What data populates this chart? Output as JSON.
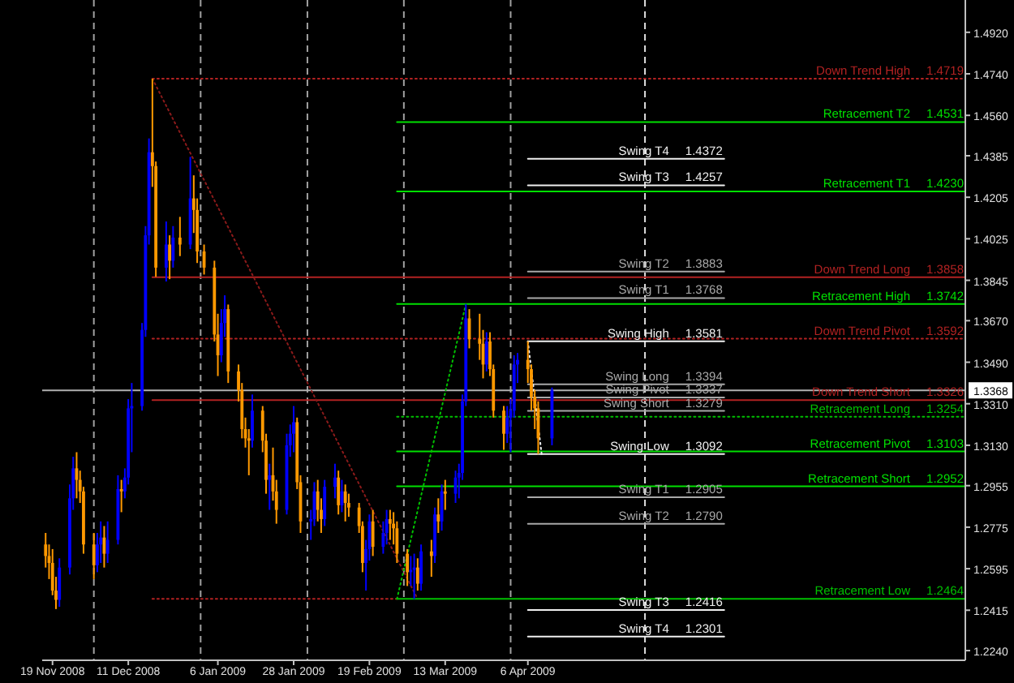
{
  "chart_data": {
    "type": "candlestick",
    "x": [
      "2008-11-17",
      "2008-11-18",
      "2008-11-19",
      "2008-11-20",
      "2008-11-21",
      "2008-11-24",
      "2008-11-25",
      "2008-11-26",
      "2008-11-27",
      "2008-11-28",
      "2008-12-01",
      "2008-12-02",
      "2008-12-03",
      "2008-12-04",
      "2008-12-05",
      "2008-12-08",
      "2008-12-09",
      "2008-12-10",
      "2008-12-11",
      "2008-12-12",
      "2008-12-15",
      "2008-12-16",
      "2008-12-17",
      "2008-12-18",
      "2008-12-19",
      "2008-12-22",
      "2008-12-23",
      "2008-12-24",
      "2008-12-26",
      "2008-12-29",
      "2008-12-30",
      "2008-12-31",
      "2009-01-02",
      "2009-01-05",
      "2009-01-06",
      "2009-01-07",
      "2009-01-08",
      "2009-01-09",
      "2009-01-12",
      "2009-01-13",
      "2009-01-14",
      "2009-01-15",
      "2009-01-16",
      "2009-01-19",
      "2009-01-20",
      "2009-01-21",
      "2009-01-22",
      "2009-01-23",
      "2009-01-26",
      "2009-01-27",
      "2009-01-28",
      "2009-01-29",
      "2009-01-30",
      "2009-02-02",
      "2009-02-03",
      "2009-02-04",
      "2009-02-05",
      "2009-02-06",
      "2009-02-09",
      "2009-02-10",
      "2009-02-11",
      "2009-02-12",
      "2009-02-13",
      "2009-02-16",
      "2009-02-17",
      "2009-02-18",
      "2009-02-19",
      "2009-02-20",
      "2009-02-23",
      "2009-02-24",
      "2009-02-25",
      "2009-02-26",
      "2009-02-27",
      "2009-03-02",
      "2009-03-03",
      "2009-03-04",
      "2009-03-05",
      "2009-03-06",
      "2009-03-09",
      "2009-03-10",
      "2009-03-11",
      "2009-03-12",
      "2009-03-13",
      "2009-03-16",
      "2009-03-17",
      "2009-03-18",
      "2009-03-19",
      "2009-03-20",
      "2009-03-23",
      "2009-03-24",
      "2009-03-25",
      "2009-03-26",
      "2009-03-27",
      "2009-03-30",
      "2009-03-31",
      "2009-04-01",
      "2009-04-02",
      "2009-04-03",
      "2009-04-06",
      "2009-04-07",
      "2009-04-08",
      "2009-04-09",
      "2009-04-13"
    ],
    "ohlc": [
      [
        1.27,
        1.275,
        1.26,
        1.265
      ],
      [
        1.265,
        1.27,
        1.255,
        1.262
      ],
      [
        1.262,
        1.268,
        1.248,
        1.25
      ],
      [
        1.25,
        1.256,
        1.242,
        1.246
      ],
      [
        1.246,
        1.264,
        1.243,
        1.26
      ],
      [
        1.26,
        1.296,
        1.257,
        1.29
      ],
      [
        1.29,
        1.308,
        1.285,
        1.303
      ],
      [
        1.303,
        1.31,
        1.29,
        1.298
      ],
      [
        1.298,
        1.302,
        1.288,
        1.293
      ],
      [
        1.293,
        1.295,
        1.266,
        1.27
      ],
      [
        1.27,
        1.275,
        1.255,
        1.261
      ],
      [
        1.261,
        1.275,
        1.258,
        1.27
      ],
      [
        1.27,
        1.28,
        1.262,
        1.273
      ],
      [
        1.273,
        1.278,
        1.26,
        1.266
      ],
      [
        1.266,
        1.28,
        1.262,
        1.272
      ],
      [
        1.272,
        1.3,
        1.27,
        1.294
      ],
      [
        1.294,
        1.298,
        1.284,
        1.293
      ],
      [
        1.293,
        1.303,
        1.29,
        1.299
      ],
      [
        1.299,
        1.333,
        1.296,
        1.329
      ],
      [
        1.329,
        1.34,
        1.31,
        1.33
      ],
      [
        1.33,
        1.366,
        1.328,
        1.363
      ],
      [
        1.363,
        1.408,
        1.36,
        1.404
      ],
      [
        1.404,
        1.446,
        1.4,
        1.44
      ],
      [
        1.44,
        1.4719,
        1.425,
        1.434
      ],
      [
        1.434,
        1.436,
        1.386,
        1.39
      ],
      [
        1.39,
        1.41,
        1.384,
        1.4
      ],
      [
        1.4,
        1.404,
        1.385,
        1.393
      ],
      [
        1.393,
        1.408,
        1.39,
        1.403
      ],
      [
        1.403,
        1.412,
        1.395,
        1.4
      ],
      [
        1.4,
        1.438,
        1.398,
        1.42
      ],
      [
        1.42,
        1.43,
        1.405,
        1.415
      ],
      [
        1.415,
        1.42,
        1.392,
        1.397
      ],
      [
        1.397,
        1.4,
        1.387,
        1.39
      ],
      [
        1.39,
        1.393,
        1.358,
        1.361
      ],
      [
        1.361,
        1.37,
        1.343,
        1.352
      ],
      [
        1.352,
        1.372,
        1.349,
        1.366
      ],
      [
        1.366,
        1.378,
        1.36,
        1.372
      ],
      [
        1.372,
        1.374,
        1.34,
        1.345
      ],
      [
        1.345,
        1.348,
        1.332,
        1.337
      ],
      [
        1.337,
        1.34,
        1.316,
        1.32
      ],
      [
        1.32,
        1.325,
        1.312,
        1.316
      ],
      [
        1.316,
        1.32,
        1.3,
        1.315
      ],
      [
        1.315,
        1.335,
        1.312,
        1.328
      ],
      [
        1.328,
        1.33,
        1.31,
        1.315
      ],
      [
        1.315,
        1.318,
        1.292,
        1.298
      ],
      [
        1.298,
        1.305,
        1.285,
        1.3
      ],
      [
        1.3,
        1.312,
        1.289,
        1.293
      ],
      [
        1.293,
        1.298,
        1.279,
        1.285
      ],
      [
        1.285,
        1.318,
        1.283,
        1.313
      ],
      [
        1.313,
        1.322,
        1.308,
        1.318
      ],
      [
        1.318,
        1.33,
        1.31,
        1.323
      ],
      [
        1.323,
        1.325,
        1.294,
        1.297
      ],
      [
        1.297,
        1.3,
        1.275,
        1.28
      ],
      [
        1.28,
        1.285,
        1.272,
        1.281
      ],
      [
        1.281,
        1.297,
        1.278,
        1.293
      ],
      [
        1.293,
        1.298,
        1.28,
        1.285
      ],
      [
        1.285,
        1.29,
        1.275,
        1.281
      ],
      [
        1.281,
        1.298,
        1.278,
        1.295
      ],
      [
        1.295,
        1.305,
        1.29,
        1.299
      ],
      [
        1.299,
        1.302,
        1.283,
        1.287
      ],
      [
        1.287,
        1.298,
        1.284,
        1.293
      ],
      [
        1.293,
        1.296,
        1.28,
        1.288
      ],
      [
        1.288,
        1.292,
        1.282,
        1.286
      ],
      [
        1.286,
        1.288,
        1.275,
        1.278
      ],
      [
        1.278,
        1.28,
        1.258,
        1.262
      ],
      [
        1.262,
        1.272,
        1.25,
        1.268
      ],
      [
        1.268,
        1.283,
        1.263,
        1.28
      ],
      [
        1.28,
        1.285,
        1.265,
        1.269
      ],
      [
        1.269,
        1.28,
        1.266,
        1.275
      ],
      [
        1.275,
        1.285,
        1.27,
        1.281
      ],
      [
        1.281,
        1.285,
        1.272,
        1.279
      ],
      [
        1.279,
        1.284,
        1.27,
        1.277
      ],
      [
        1.277,
        1.28,
        1.262,
        1.266
      ],
      [
        1.266,
        1.268,
        1.252,
        1.258
      ],
      [
        1.258,
        1.265,
        1.252,
        1.259
      ],
      [
        1.259,
        1.266,
        1.2464,
        1.26
      ],
      [
        1.26,
        1.264,
        1.25,
        1.253
      ],
      [
        1.253,
        1.27,
        1.25,
        1.267
      ],
      [
        1.267,
        1.272,
        1.256,
        1.265
      ],
      [
        1.265,
        1.286,
        1.262,
        1.283
      ],
      [
        1.283,
        1.29,
        1.275,
        1.28
      ],
      [
        1.28,
        1.296,
        1.276,
        1.293
      ],
      [
        1.293,
        1.298,
        1.285,
        1.292
      ],
      [
        1.292,
        1.302,
        1.288,
        1.299
      ],
      [
        1.299,
        1.305,
        1.29,
        1.301
      ],
      [
        1.301,
        1.335,
        1.298,
        1.332
      ],
      [
        1.332,
        1.3742,
        1.33,
        1.368
      ],
      [
        1.368,
        1.372,
        1.355,
        1.359
      ],
      [
        1.359,
        1.37,
        1.35,
        1.357
      ],
      [
        1.357,
        1.363,
        1.342,
        1.348
      ],
      [
        1.348,
        1.362,
        1.345,
        1.358
      ],
      [
        1.358,
        1.362,
        1.343,
        1.346
      ],
      [
        1.346,
        1.348,
        1.325,
        1.328
      ],
      [
        1.328,
        1.33,
        1.311,
        1.318
      ],
      [
        1.318,
        1.33,
        1.314,
        1.325
      ],
      [
        1.325,
        1.333,
        1.31,
        1.328
      ],
      [
        1.328,
        1.352,
        1.325,
        1.348
      ],
      [
        1.348,
        1.353,
        1.34,
        1.35
      ],
      [
        1.35,
        1.3581,
        1.34,
        1.346
      ],
      [
        1.346,
        1.348,
        1.328,
        1.334
      ],
      [
        1.334,
        1.337,
        1.32,
        1.329
      ],
      [
        1.329,
        1.332,
        1.3092,
        1.316
      ],
      [
        1.316,
        1.338,
        1.313,
        1.3368
      ]
    ],
    "colors": [
      "#ff9900",
      "#ff9900",
      "#ff9900",
      "#ff9900",
      "#0000ff",
      "#0000ff",
      "#0000ff",
      "#ff9900",
      "#ff9900",
      "#ff9900",
      "#ff9900",
      "#0000ff",
      "#0000ff",
      "#ff9900",
      "#0000ff",
      "#0000ff",
      "#ff9900",
      "#0000ff",
      "#0000ff",
      "#0000ff",
      "#0000ff",
      "#0000ff",
      "#0000ff",
      "#ff9900",
      "#ff9900",
      "#0000ff",
      "#ff9900",
      "#0000ff",
      "#ff9900",
      "#0000ff",
      "#ff9900",
      "#ff9900",
      "#ff9900",
      "#ff9900",
      "#ff9900",
      "#0000ff",
      "#0000ff",
      "#ff9900",
      "#ff9900",
      "#ff9900",
      "#ff9900",
      "#ff9900",
      "#0000ff",
      "#ff9900",
      "#ff9900",
      "#0000ff",
      "#ff9900",
      "#ff9900",
      "#0000ff",
      "#0000ff",
      "#0000ff",
      "#ff9900",
      "#ff9900",
      "#0000ff",
      "#0000ff",
      "#ff9900",
      "#ff9900",
      "#0000ff",
      "#0000ff",
      "#ff9900",
      "#0000ff",
      "#ff9900",
      "#ff9900",
      "#ff9900",
      "#ff9900",
      "#0000ff",
      "#0000ff",
      "#ff9900",
      "#0000ff",
      "#0000ff",
      "#ff9900",
      "#ff9900",
      "#ff9900",
      "#ff9900",
      "#0000ff",
      "#0000ff",
      "#ff9900",
      "#0000ff",
      "#ff9900",
      "#0000ff",
      "#ff9900",
      "#0000ff",
      "#ff9900",
      "#0000ff",
      "#0000ff",
      "#0000ff",
      "#0000ff",
      "#ff9900",
      "#ff9900",
      "#ff9900",
      "#0000ff",
      "#ff9900",
      "#ff9900",
      "#ff9900",
      "#0000ff",
      "#0000ff",
      "#0000ff",
      "#0000ff",
      "#ff9900",
      "#ff9900",
      "#ff9900",
      "#ff9900",
      "#0000ff"
    ],
    "xlim": [
      "2008-11-16",
      "2009-08-11"
    ],
    "xticks": [
      {
        "value": "2008-11-19",
        "label": "19 Nov 2008"
      },
      {
        "value": "2008-12-11",
        "label": "11 Dec 2008"
      },
      {
        "value": "2009-01-06",
        "label": "6 Jan 2009"
      },
      {
        "value": "2009-01-28",
        "label": "28 Jan 2009"
      },
      {
        "value": "2009-02-19",
        "label": "19 Feb 2009"
      },
      {
        "value": "2009-03-13",
        "label": "13 Mar 2009"
      },
      {
        "value": "2009-04-06",
        "label": "6 Apr 2009"
      }
    ],
    "ylim": [
      1.2198,
      1.506
    ],
    "yticks": [
      {
        "value": 1.492,
        "label": "1.4920"
      },
      {
        "value": 1.474,
        "label": "1.4740"
      },
      {
        "value": 1.456,
        "label": "1.4560"
      },
      {
        "value": 1.4385,
        "label": "1.4385"
      },
      {
        "value": 1.4205,
        "label": "1.4205"
      },
      {
        "value": 1.4025,
        "label": "1.4025"
      },
      {
        "value": 1.3845,
        "label": "1.3845"
      },
      {
        "value": 1.367,
        "label": "1.3670"
      },
      {
        "value": 1.349,
        "label": "1.3490"
      },
      {
        "value": 1.331,
        "label": "1.3310"
      },
      {
        "value": 1.313,
        "label": "1.3130"
      },
      {
        "value": 1.2955,
        "label": "1.2955"
      },
      {
        "value": 1.2775,
        "label": "1.2775"
      },
      {
        "value": 1.2595,
        "label": "1.2595"
      },
      {
        "value": 1.2415,
        "label": "1.2415"
      },
      {
        "value": 1.224,
        "label": "1.2240"
      }
    ],
    "ref_lines": [
      {
        "axis": "x",
        "value": "2008-12-01",
        "color": "#a0a0a0",
        "line_style": "dashed"
      },
      {
        "axis": "x",
        "value": "2009-01-01",
        "color": "#a0a0a0",
        "line_style": "dashed"
      },
      {
        "axis": "x",
        "value": "2009-02-01",
        "color": "#a0a0a0",
        "line_style": "dashed"
      },
      {
        "axis": "x",
        "value": "2009-03-01",
        "color": "#a0a0a0",
        "line_style": "dashed"
      },
      {
        "axis": "x",
        "value": "2009-04-01",
        "color": "#a0a0a0",
        "line_style": "dashed"
      },
      {
        "axis": "x",
        "value": "2009-05-10",
        "color": "#e0e0e0",
        "line_style": "dashed"
      },
      {
        "axis": "y",
        "value": 1.3368,
        "label": "1.3368",
        "color": "#b0b0b0",
        "line_style": "solid"
      }
    ],
    "series": [
      {
        "type": "line",
        "name": "Down Trend High",
        "color": "#b22222",
        "x": [
          "2008-12-18",
          "2009-08-11"
        ],
        "values": [
          1.4719,
          1.4719
        ],
        "value_labels": [
          null,
          "1.4719"
        ],
        "line_style": "dotted"
      },
      {
        "type": "line",
        "name": "Down Trend Long",
        "color": "#b22222",
        "x": [
          "2008-12-18",
          "2009-08-11"
        ],
        "values": [
          1.3858,
          1.3858
        ],
        "value_labels": [
          null,
          "1.3858"
        ],
        "line_style": "solid"
      },
      {
        "type": "line",
        "name": "Down Trend Pivot",
        "color": "#b22222",
        "x": [
          "2008-12-18",
          "2009-08-11"
        ],
        "values": [
          1.3592,
          1.3592
        ],
        "value_labels": [
          null,
          "1.3592"
        ],
        "line_style": "dotted"
      },
      {
        "type": "line",
        "name": "Down Trend Short",
        "color": "#b22222",
        "x": [
          "2008-12-18",
          "2009-08-11"
        ],
        "values": [
          1.3326,
          1.3326
        ],
        "value_labels": [
          null,
          "1.3326"
        ],
        "line_style": "solid"
      },
      {
        "type": "line",
        "color": "#b22222",
        "x": [
          "2008-12-18",
          "2009-02-27"
        ],
        "values": [
          1.2464,
          1.2464
        ],
        "line_style": "dotted"
      },
      {
        "type": "line",
        "color": "#8b1a1a",
        "x": [
          "2008-12-18",
          "2009-03-05"
        ],
        "values": [
          1.4719,
          1.2464
        ],
        "line_style": "dotted"
      },
      {
        "type": "line",
        "name": "Retracement T2",
        "color": "#00e000",
        "x": [
          "2009-02-27",
          "2009-08-11"
        ],
        "values": [
          1.4531,
          1.4531
        ],
        "value_labels": [
          null,
          "1.4531"
        ],
        "line_style": "solid"
      },
      {
        "type": "line",
        "name": "Retracement T1",
        "color": "#00e000",
        "x": [
          "2009-02-27",
          "2009-08-11"
        ],
        "values": [
          1.423,
          1.423
        ],
        "value_labels": [
          null,
          "1.4230"
        ],
        "line_style": "solid"
      },
      {
        "type": "line",
        "name": "Retracement High",
        "color": "#00e000",
        "x": [
          "2009-02-27",
          "2009-08-11"
        ],
        "values": [
          1.3742,
          1.3742
        ],
        "value_labels": [
          null,
          "1.3742"
        ],
        "line_style": "solid"
      },
      {
        "type": "line",
        "name": "Retracement Long",
        "color": "#00c000",
        "x": [
          "2009-02-27",
          "2009-08-11"
        ],
        "values": [
          1.3254,
          1.3254
        ],
        "value_labels": [
          null,
          "1.3254"
        ],
        "line_style": "dotted"
      },
      {
        "type": "line",
        "name": "Retracement Pivot",
        "color": "#00e000",
        "x": [
          "2009-02-27",
          "2009-08-11"
        ],
        "values": [
          1.3103,
          1.3103
        ],
        "value_labels": [
          null,
          "1.3103"
        ],
        "line_style": "solid"
      },
      {
        "type": "line",
        "name": "Retracement Short",
        "color": "#00e000",
        "x": [
          "2009-02-27",
          "2009-08-11"
        ],
        "values": [
          1.2952,
          1.2952
        ],
        "value_labels": [
          null,
          "1.2952"
        ],
        "line_style": "solid"
      },
      {
        "type": "line",
        "name": "Retracement Low",
        "color": "#00c000",
        "x": [
          "2009-02-27",
          "2009-08-11"
        ],
        "values": [
          1.2464,
          1.2464
        ],
        "value_labels": [
          null,
          "1.2464"
        ],
        "line_style": "solid"
      },
      {
        "type": "line",
        "color": "#00c000",
        "x": [
          "2009-02-27",
          "2009-03-19"
        ],
        "values": [
          1.2464,
          1.3742
        ],
        "line_style": "dotted"
      },
      {
        "type": "line",
        "name": "Swing T4",
        "color": "#f0f0f0",
        "x": [
          "2009-04-06",
          "2009-06-02"
        ],
        "values": [
          1.4372,
          1.4372
        ],
        "value_labels": [
          null,
          "1.4372"
        ],
        "line_style": "solid"
      },
      {
        "type": "line",
        "name": "Swing T3",
        "color": "#f0f0f0",
        "x": [
          "2009-04-06",
          "2009-06-02"
        ],
        "values": [
          1.4257,
          1.4257
        ],
        "value_labels": [
          null,
          "1.4257"
        ],
        "line_style": "solid"
      },
      {
        "type": "line",
        "name": "Swing T2",
        "color": "#a8a8a8",
        "x": [
          "2009-04-06",
          "2009-06-02"
        ],
        "values": [
          1.3883,
          1.3883
        ],
        "value_labels": [
          null,
          "1.3883"
        ],
        "line_style": "solid"
      },
      {
        "type": "line",
        "name": "Swing T1",
        "color": "#a8a8a8",
        "x": [
          "2009-04-06",
          "2009-06-02"
        ],
        "values": [
          1.3768,
          1.3768
        ],
        "value_labels": [
          null,
          "1.3768"
        ],
        "line_style": "solid"
      },
      {
        "type": "line",
        "name": "Swing High",
        "color": "#f0f0f0",
        "x": [
          "2009-04-06",
          "2009-06-02"
        ],
        "values": [
          1.3581,
          1.3581
        ],
        "value_labels": [
          null,
          "1.3581"
        ],
        "line_style": "solid"
      },
      {
        "type": "line",
        "name": "Swing Long",
        "color": "#a8a8a8",
        "x": [
          "2009-04-06",
          "2009-06-02"
        ],
        "values": [
          1.3394,
          1.3394
        ],
        "value_labels": [
          null,
          "1.3394"
        ],
        "line_style": "solid"
      },
      {
        "type": "line",
        "name": "Swing Pivot",
        "color": "#a8a8a8",
        "x": [
          "2009-04-06",
          "2009-06-02"
        ],
        "values": [
          1.3337,
          1.3337
        ],
        "value_labels": [
          null,
          "1.3337"
        ],
        "line_style": "solid"
      },
      {
        "type": "line",
        "name": "Swing Short",
        "color": "#a8a8a8",
        "x": [
          "2009-04-06",
          "2009-06-02"
        ],
        "values": [
          1.3279,
          1.3279
        ],
        "value_labels": [
          null,
          "1.3279"
        ],
        "line_style": "solid"
      },
      {
        "type": "line",
        "name": "Swing Low",
        "color": "#f0f0f0",
        "x": [
          "2009-04-06",
          "2009-06-02"
        ],
        "values": [
          1.3092,
          1.3092
        ],
        "value_labels": [
          null,
          "1.3092"
        ],
        "line_style": "solid"
      },
      {
        "type": "line",
        "name": "Swing T1",
        "color": "#a8a8a8",
        "x": [
          "2009-04-06",
          "2009-06-02"
        ],
        "values": [
          1.2905,
          1.2905
        ],
        "value_labels": [
          null,
          "1.2905"
        ],
        "line_style": "solid"
      },
      {
        "type": "line",
        "name": "Swing T2",
        "color": "#a8a8a8",
        "x": [
          "2009-04-06",
          "2009-06-02"
        ],
        "values": [
          1.279,
          1.279
        ],
        "value_labels": [
          null,
          "1.2790"
        ],
        "line_style": "solid"
      },
      {
        "type": "line",
        "name": "Swing T3",
        "color": "#f0f0f0",
        "x": [
          "2009-04-06",
          "2009-06-02"
        ],
        "values": [
          1.2416,
          1.2416
        ],
        "value_labels": [
          null,
          "1.2416"
        ],
        "line_style": "solid"
      },
      {
        "type": "line",
        "name": "Swing T4",
        "color": "#f0f0f0",
        "x": [
          "2009-04-06",
          "2009-06-02"
        ],
        "values": [
          1.2301,
          1.2301
        ],
        "value_labels": [
          null,
          "1.2301"
        ],
        "line_style": "solid"
      },
      {
        "type": "line",
        "color": "#f0f0f0",
        "x": [
          "2009-04-06",
          "2009-04-10"
        ],
        "values": [
          1.3581,
          1.3092
        ],
        "line_style": "dotted"
      }
    ]
  }
}
